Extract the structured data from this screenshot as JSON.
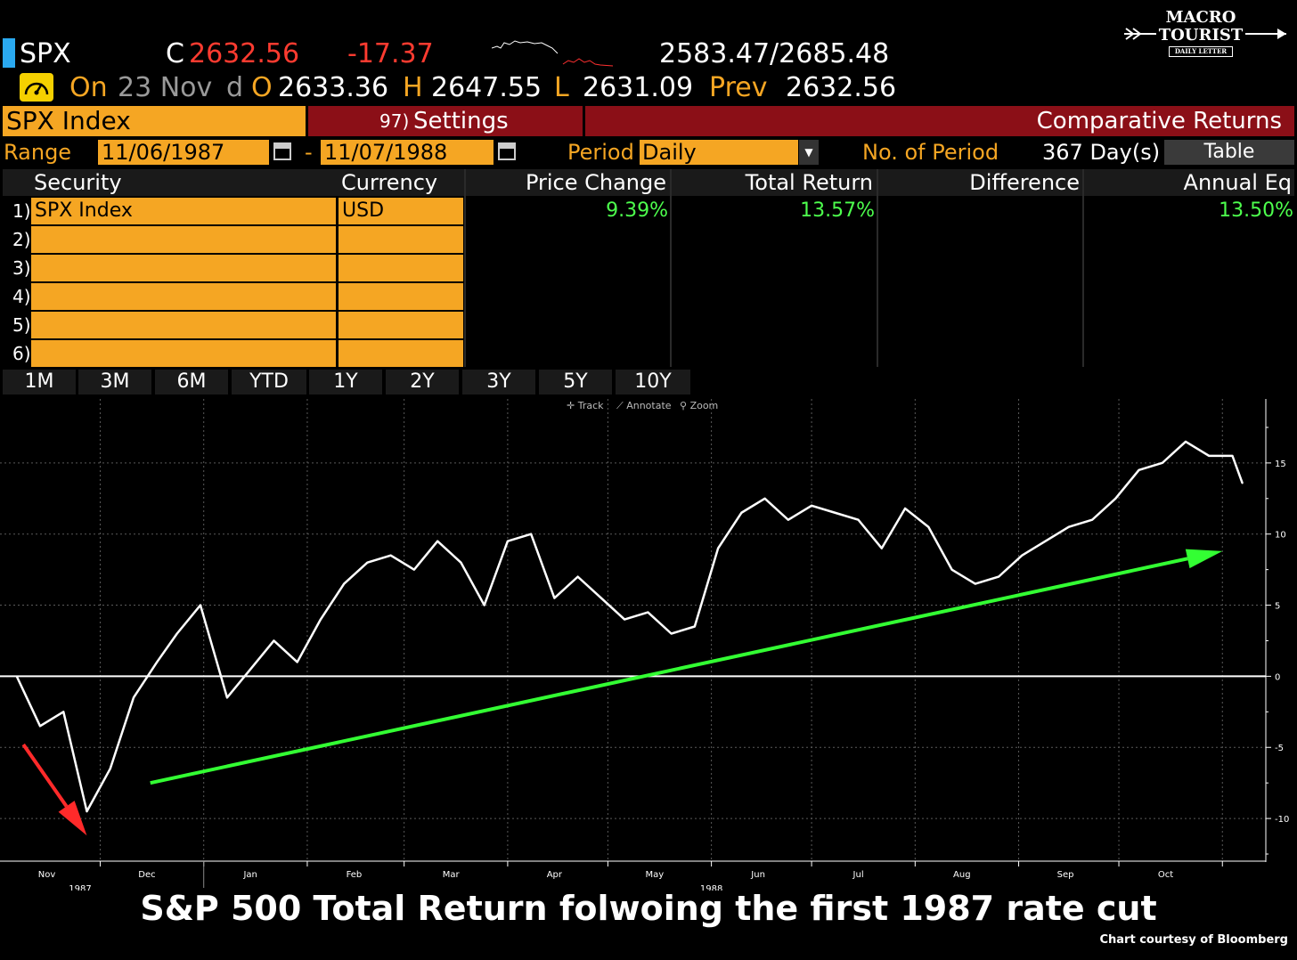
{
  "header": {
    "ticker": "SPX",
    "close_label": "C",
    "close_value": "2632.56",
    "change": "-17.37",
    "range": "2583.47/2685.48",
    "on_label": "On",
    "date": "23 Nov",
    "d_label": "d",
    "open_label": "O",
    "open_value": "2633.36",
    "high_label": "H",
    "high_value": "2647.55",
    "low_label": "L",
    "low_value": "2631.09",
    "prev_label": "Prev",
    "prev_value": "2632.56"
  },
  "logo": {
    "line1": "MACRO",
    "line2": "TOURIST",
    "line3": "DAILY LETTER"
  },
  "title_bar": {
    "index_label": "SPX Index",
    "settings_num": "97)",
    "settings_label": "Settings",
    "function_label": "Comparative Returns"
  },
  "controls": {
    "range_label": "Range",
    "start_date": "11/06/1987",
    "dash": "-",
    "end_date": "11/07/1988",
    "period_label": "Period",
    "period_value": "Daily",
    "num_periods_label": "No. of Period",
    "num_periods_value": "367 Day(s)",
    "table_button": "Table"
  },
  "table": {
    "headers": [
      "Security",
      "Currency",
      "Price Change",
      "Total Return",
      "Difference",
      "Annual Eq"
    ],
    "rows": [
      {
        "num": "1)",
        "security": "SPX Index",
        "currency": "USD",
        "price_change": "9.39%",
        "total_return": "13.57%",
        "difference": "",
        "annual_eq": "13.50%"
      },
      {
        "num": "2)"
      },
      {
        "num": "3)"
      },
      {
        "num": "4)"
      },
      {
        "num": "5)"
      },
      {
        "num": "6)"
      }
    ]
  },
  "range_buttons": [
    "1M",
    "3M",
    "6M",
    "YTD",
    "1Y",
    "2Y",
    "3Y",
    "5Y",
    "10Y"
  ],
  "chart_tools": [
    "Track",
    "Annotate",
    "Zoom"
  ],
  "chart_data": {
    "type": "line",
    "x_tick_labels": [
      "Nov",
      "Dec",
      "Jan",
      "Feb",
      "Mar",
      "Apr",
      "May",
      "Jun",
      "Jul",
      "Aug",
      "Sep",
      "Oct"
    ],
    "x_year_labels": [
      "1987",
      "1988"
    ],
    "y_tick_labels": [
      "15",
      "10",
      "5",
      "0",
      "-5",
      "-10"
    ],
    "ylim": [
      -13,
      19.5
    ],
    "grid": true,
    "series": [
      {
        "color": "#ffffff",
        "x": [
          "1987-11-06",
          "1987-11-13",
          "1987-11-20",
          "1987-11-27",
          "1987-12-04",
          "1987-12-11",
          "1987-12-18",
          "1987-12-24",
          "1987-12-31",
          "1988-01-08",
          "1988-01-15",
          "1988-01-22",
          "1988-01-29",
          "1988-02-05",
          "1988-02-12",
          "1988-02-19",
          "1988-02-26",
          "1988-03-04",
          "1988-03-11",
          "1988-03-18",
          "1988-03-25",
          "1988-04-01",
          "1988-04-08",
          "1988-04-15",
          "1988-04-22",
          "1988-04-29",
          "1988-05-06",
          "1988-05-13",
          "1988-05-20",
          "1988-05-27",
          "1988-06-03",
          "1988-06-10",
          "1988-06-17",
          "1988-06-24",
          "1988-07-01",
          "1988-07-08",
          "1988-07-15",
          "1988-07-22",
          "1988-07-29",
          "1988-08-05",
          "1988-08-12",
          "1988-08-19",
          "1988-08-26",
          "1988-09-02",
          "1988-09-09",
          "1988-09-16",
          "1988-09-23",
          "1988-09-30",
          "1988-10-07",
          "1988-10-14",
          "1988-10-21",
          "1988-10-28",
          "1988-11-04",
          "1988-11-07"
        ],
        "values": [
          0,
          -3.5,
          -2.5,
          -9.5,
          -6.5,
          -1.5,
          1.0,
          3.0,
          5.0,
          -1.5,
          0.5,
          2.5,
          1.0,
          4.0,
          6.5,
          8.0,
          8.5,
          7.5,
          9.5,
          8.0,
          5.0,
          9.5,
          10.0,
          5.5,
          7.0,
          5.5,
          4.0,
          4.5,
          3.0,
          3.5,
          9.0,
          11.5,
          12.5,
          11.0,
          12.0,
          11.5,
          11.0,
          9.0,
          11.8,
          10.5,
          7.5,
          6.5,
          7.0,
          8.5,
          9.5,
          10.5,
          11.0,
          12.5,
          14.5,
          15.0,
          16.5,
          15.5,
          15.5,
          13.57
        ]
      }
    ],
    "annotations": [
      {
        "type": "arrow",
        "color": "#ff2a2a",
        "from": [
          "1987-11-08",
          -4.8
        ],
        "to": [
          "1987-11-27",
          -11.2
        ]
      },
      {
        "type": "arrow",
        "color": "#33ff33",
        "from": [
          "1987-12-16",
          -7.5
        ],
        "to": [
          "1988-11-01",
          8.8
        ]
      }
    ]
  },
  "caption": "S&P 500 Total Return folwoing the first 1987 rate cut",
  "credit": "Chart courtesy of Bloomberg"
}
